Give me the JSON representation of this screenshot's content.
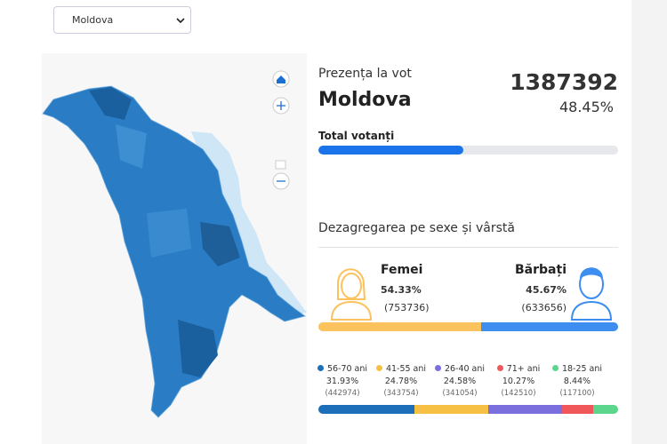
{
  "select": {
    "value": "Moldova"
  },
  "turnout": {
    "title": "Prezența la vot",
    "region": "Moldova",
    "count": 1387392,
    "percent": {
      "value": 48.45,
      "label": "48.45%"
    },
    "bar_label": "Total votanți"
  },
  "breakdown": {
    "title": "Dezagregarea pe sexe și vârstă",
    "genders": [
      {
        "name": "Femei",
        "percent": {
          "value": 54.33,
          "label": "54.33%"
        },
        "count": "(753736)",
        "color": "#fbc25e"
      },
      {
        "name": "Bărbați",
        "percent": {
          "value": 45.67,
          "label": "45.67%"
        },
        "count": "(633656)",
        "color": "#3d8ef0"
      }
    ],
    "ages": [
      {
        "name": "56-70 ani",
        "percent": {
          "value": 31.93,
          "label": "31.93%"
        },
        "count": "(442974)",
        "color": "#1c6fb8"
      },
      {
        "name": "41-55 ani",
        "percent": {
          "value": 24.78,
          "label": "24.78%"
        },
        "count": "(343754)",
        "color": "#f5c043"
      },
      {
        "name": "26-40 ani",
        "percent": {
          "value": 24.58,
          "label": "24.58%"
        },
        "count": "(341054)",
        "color": "#7b6fde"
      },
      {
        "name": "71+ ani",
        "percent": {
          "value": 10.27,
          "label": "10.27%"
        },
        "count": "(142510)",
        "color": "#f0575b"
      },
      {
        "name": "18-25 ani",
        "percent": {
          "value": 8.44,
          "label": "8.44%"
        },
        "count": "(117100)",
        "color": "#5cd68c"
      }
    ]
  }
}
